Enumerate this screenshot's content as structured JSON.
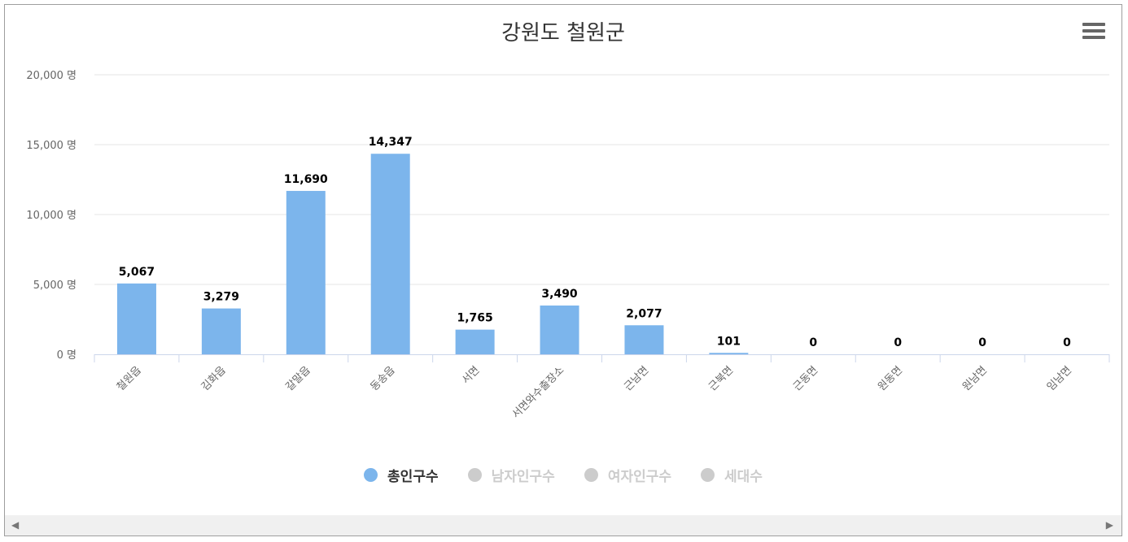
{
  "chart_data": {
    "type": "bar",
    "title": "강원도 철원군",
    "categories": [
      "철원읍",
      "김화읍",
      "갈말읍",
      "동송읍",
      "서면",
      "서면와수출장소",
      "근남면",
      "근북면",
      "근동면",
      "원동면",
      "원남면",
      "임남면"
    ],
    "series": [
      {
        "name": "총인구수",
        "values": [
          5067,
          3279,
          11690,
          14347,
          1765,
          3490,
          2077,
          101,
          0,
          0,
          0,
          0
        ]
      }
    ],
    "value_labels": [
      "5,067",
      "3,279",
      "11,690",
      "14,347",
      "1,765",
      "3,490",
      "2,077",
      "101",
      "0",
      "0",
      "0",
      "0"
    ],
    "ylim": [
      0,
      20000
    ],
    "y_ticks": [
      0,
      5000,
      10000,
      15000,
      20000
    ],
    "y_tick_labels": [
      "0 명",
      "5,000 명",
      "10,000 명",
      "15,000 명",
      "20,000 명"
    ],
    "grid": true,
    "legend_position": "bottom-center",
    "bar_color": "#7cb5ec"
  },
  "legend": [
    {
      "label": "총인구수",
      "color": "#7cb5ec",
      "text_color": "#333333",
      "active": true
    },
    {
      "label": "남자인구수",
      "color": "#cccccc",
      "text_color": "#cccccc",
      "active": false
    },
    {
      "label": "여자인구수",
      "color": "#cccccc",
      "text_color": "#cccccc",
      "active": false
    },
    {
      "label": "세대수",
      "color": "#cccccc",
      "text_color": "#cccccc",
      "active": false
    }
  ],
  "scrollbar": {
    "left_arrow": "◀",
    "right_arrow": "▶"
  }
}
